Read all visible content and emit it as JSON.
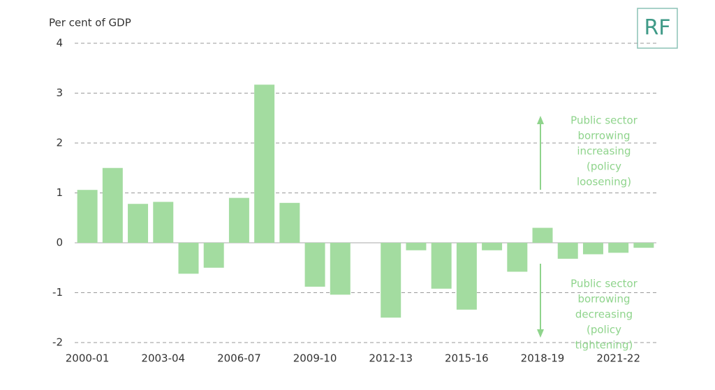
{
  "chart_data": {
    "type": "bar",
    "logo": "RF",
    "y_axis_label": "Per cent of GDP",
    "categories": [
      "2000-01",
      null,
      null,
      "2003-04",
      null,
      null,
      "2006-07",
      null,
      null,
      "2009-10",
      null,
      null,
      "2012-13",
      null,
      null,
      "2015-16",
      null,
      null,
      "2018-19",
      null,
      null,
      "2021-22",
      null
    ],
    "values": [
      1.06,
      1.5,
      0.78,
      0.82,
      -0.62,
      -0.5,
      0.9,
      3.17,
      0.8,
      -0.88,
      -1.04,
      0,
      -1.5,
      -0.15,
      -0.92,
      -1.34,
      -0.15,
      -0.58,
      0.3,
      -0.32,
      -0.23,
      -0.2,
      -0.1
    ],
    "color": "#a3dca0",
    "ylim": [
      -2,
      4
    ],
    "yticks": [
      -2,
      -1,
      0,
      1,
      2,
      3,
      4
    ],
    "grid": true,
    "annotations": [
      {
        "lines": [
          "Public sector",
          "borrowing",
          "increasing",
          "(policy",
          "loosening)"
        ],
        "arrow": "up"
      },
      {
        "lines": [
          "Public sector",
          "borrowing",
          "decreasing",
          "(policy",
          "tightening)"
        ],
        "arrow": "down"
      }
    ]
  }
}
